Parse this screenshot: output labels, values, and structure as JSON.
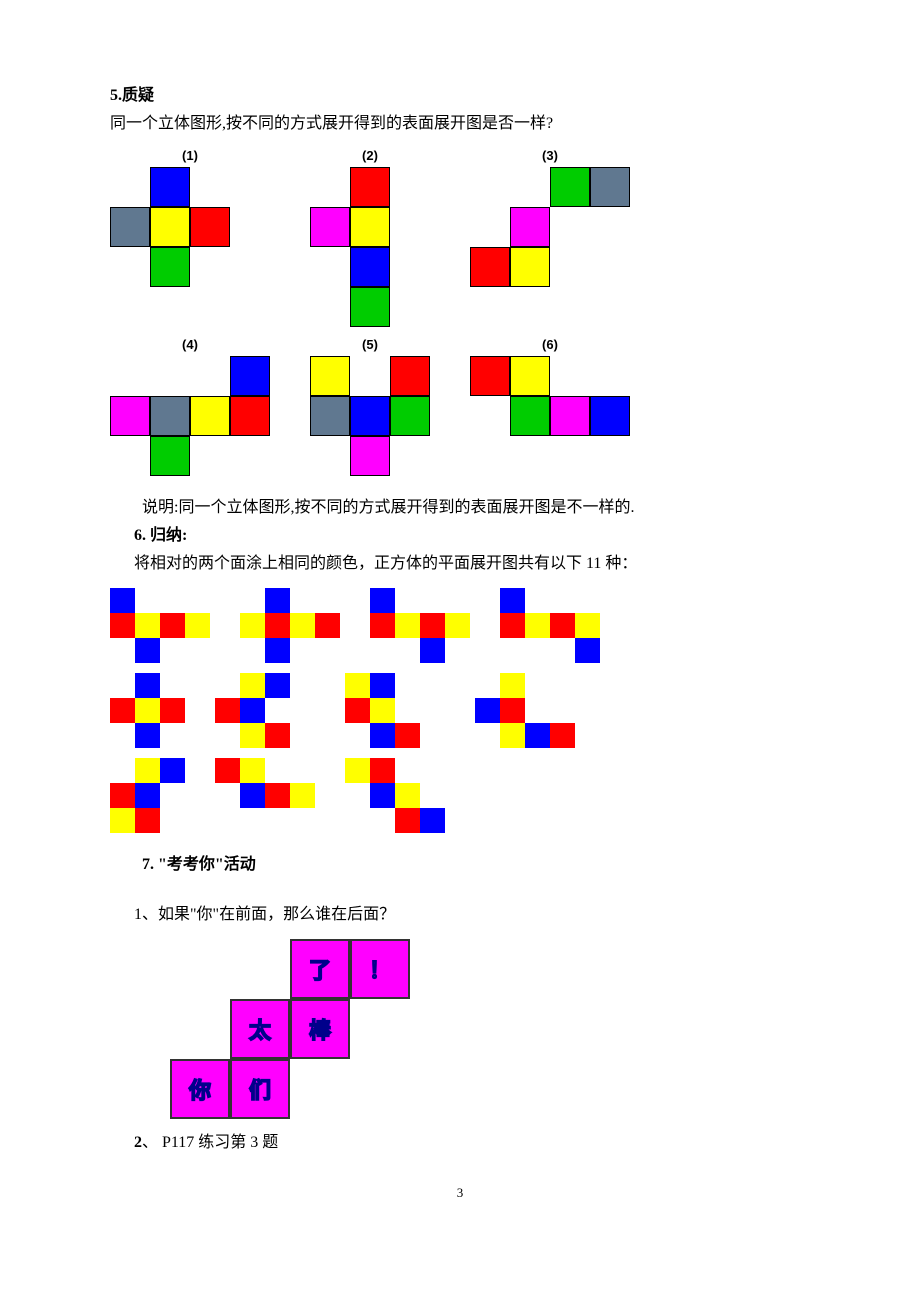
{
  "colors": {
    "red": "#ff0000",
    "blue": "#0000ff",
    "yellow": "#ffff00",
    "green": "#00cc00",
    "magenta": "#ff00ff",
    "slate": "#607890",
    "white": "#ffffff",
    "darkblue": "#00008b"
  },
  "section5": {
    "heading": "5.质疑",
    "question": "同一个立体图形,按不同的方式展开得到的表面展开图是否一样?",
    "sq_size": 40,
    "nets": [
      {
        "label": "(1)",
        "cols": 4,
        "rows": 4,
        "cells": [
          null,
          "blue",
          null,
          null,
          "slate",
          "yellow",
          "red",
          null,
          null,
          "green",
          null,
          null,
          null,
          null,
          null,
          null
        ]
      },
      {
        "label": "(2)",
        "cols": 3,
        "rows": 4,
        "cells": [
          null,
          "red",
          null,
          "magenta",
          "yellow",
          null,
          null,
          "blue",
          null,
          null,
          "green",
          null
        ]
      },
      {
        "label": "(3)",
        "cols": 4,
        "rows": 3,
        "cells": [
          null,
          null,
          "green",
          "slate",
          null,
          "magenta",
          null,
          null,
          "red",
          "yellow",
          null,
          null
        ]
      },
      {
        "label": "(4)",
        "cols": 4,
        "rows": 3,
        "cells": [
          null,
          null,
          null,
          "blue",
          "magenta",
          "slate",
          "yellow",
          "red",
          null,
          "green",
          null,
          null
        ]
      },
      {
        "label": "(5)",
        "cols": 3,
        "rows": 3,
        "cells": [
          "yellow",
          null,
          "red",
          "slate",
          "blue",
          "green",
          null,
          "magenta",
          null
        ]
      },
      {
        "label": "(6)",
        "cols": 4,
        "rows": 2,
        "cells": [
          "red",
          "yellow",
          null,
          null,
          null,
          "green",
          "magenta",
          "blue"
        ]
      }
    ],
    "conclusion": "说明:同一个立体图形,按不同的方式展开得到的表面展开图是不一样的."
  },
  "section6": {
    "heading": "6. 归纳:",
    "text": "将相对的两个面涂上相同的颜色，正方体的平面展开图共有以下 11 种：",
    "sq_size": 25,
    "rows": [
      [
        {
          "cols": 4,
          "rows": 3,
          "cells": [
            "blue",
            null,
            null,
            null,
            "red",
            "yellow",
            "red",
            "yellow",
            null,
            "blue",
            null,
            null
          ]
        },
        {
          "cols": 4,
          "rows": 3,
          "cells": [
            null,
            "blue",
            null,
            null,
            "yellow",
            "red",
            "yellow",
            "red",
            null,
            "blue",
            null,
            null
          ]
        },
        {
          "cols": 4,
          "rows": 3,
          "cells": [
            "blue",
            null,
            null,
            null,
            "red",
            "yellow",
            "red",
            "yellow",
            null,
            null,
            "blue",
            null
          ]
        },
        {
          "cols": 4,
          "rows": 3,
          "cells": [
            "blue",
            null,
            null,
            null,
            "red",
            "yellow",
            "red",
            "yellow",
            null,
            null,
            null,
            "blue"
          ]
        }
      ],
      [
        {
          "cols": 3,
          "rows": 3,
          "cells": [
            null,
            "blue",
            null,
            "red",
            "yellow",
            "red",
            null,
            "blue",
            null
          ]
        },
        {
          "cols": 4,
          "rows": 3,
          "cells": [
            null,
            "yellow",
            "blue",
            null,
            "red",
            "blue",
            null,
            null,
            null,
            "yellow",
            "red",
            null
          ]
        },
        {
          "cols": 4,
          "rows": 3,
          "cells": [
            "yellow",
            "blue",
            null,
            null,
            "red",
            "yellow",
            null,
            null,
            null,
            "blue",
            "red",
            null
          ]
        },
        {
          "cols": 4,
          "rows": 3,
          "cells": [
            null,
            "yellow",
            null,
            null,
            "blue",
            "red",
            null,
            null,
            null,
            "yellow",
            "blue",
            "red"
          ]
        }
      ],
      [
        {
          "cols": 3,
          "rows": 3,
          "cells": [
            null,
            "yellow",
            "blue",
            "red",
            "blue",
            null,
            "yellow",
            "red",
            null
          ]
        },
        {
          "cols": 4,
          "rows": 2,
          "cells": [
            "red",
            "yellow",
            null,
            null,
            null,
            "blue",
            "red",
            "yellow"
          ]
        },
        {
          "cols": 4,
          "rows": 3,
          "cells": [
            "yellow",
            "red",
            null,
            null,
            null,
            "blue",
            "yellow",
            null,
            null,
            null,
            "red",
            "blue"
          ]
        }
      ]
    ]
  },
  "section7": {
    "heading": "7.  \"考考你\"活动",
    "q1": "1、如果\"你\"在前面，那么谁在后面？",
    "q2": "2、 P117 练习第 3  题",
    "sq_size": 60,
    "bg_color": "#ff00ff",
    "text_color": "#00008b",
    "cells": [
      null,
      null,
      "了",
      "！",
      null,
      "太",
      "棒",
      null,
      "你",
      "们",
      null,
      null
    ]
  },
  "page_number": "3"
}
